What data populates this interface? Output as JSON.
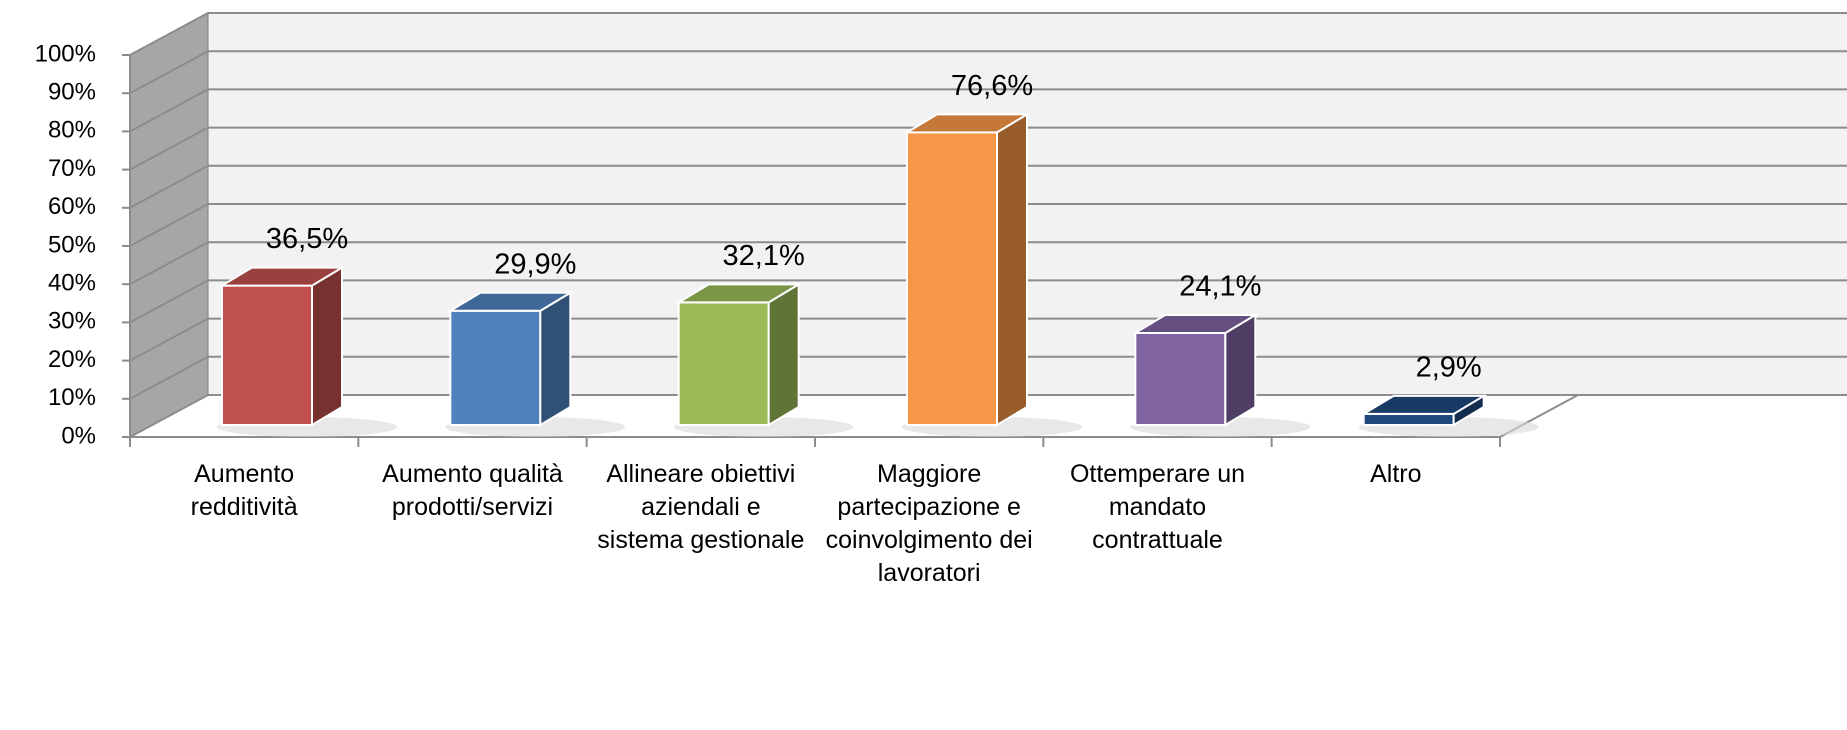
{
  "chart_data": {
    "type": "bar3d",
    "categories": [
      "Aumento redditività",
      "Aumento qualità prodotti/servizi",
      "Allineare obiettivi aziendali e sistema gestionale",
      "Maggiore partecipazione e coinvolgimento dei lavoratori",
      "Ottemperare un mandato contrattuale",
      "Altro"
    ],
    "values": [
      36.5,
      29.9,
      32.1,
      76.6,
      24.1,
      2.9
    ],
    "value_labels": [
      "36,5%",
      "29,9%",
      "32,1%",
      "76,6%",
      "24,1%",
      "2,9%"
    ],
    "colors": [
      "#c0504d",
      "#4f81bd",
      "#9bbb59",
      "#f79646",
      "#8064a2",
      "#1f497d"
    ],
    "ylim": [
      0,
      100
    ],
    "yticks": [
      {
        "value": 0,
        "label": "0%"
      },
      {
        "value": 10,
        "label": "10%"
      },
      {
        "value": 20,
        "label": "20%"
      },
      {
        "value": 30,
        "label": "30%"
      },
      {
        "value": 40,
        "label": "40%"
      },
      {
        "value": 50,
        "label": "50%"
      },
      {
        "value": 60,
        "label": "60%"
      },
      {
        "value": 70,
        "label": "70%"
      },
      {
        "value": 80,
        "label": "80%"
      },
      {
        "value": 90,
        "label": "90%"
      },
      {
        "value": 100,
        "label": "100%"
      }
    ],
    "grid": true
  }
}
